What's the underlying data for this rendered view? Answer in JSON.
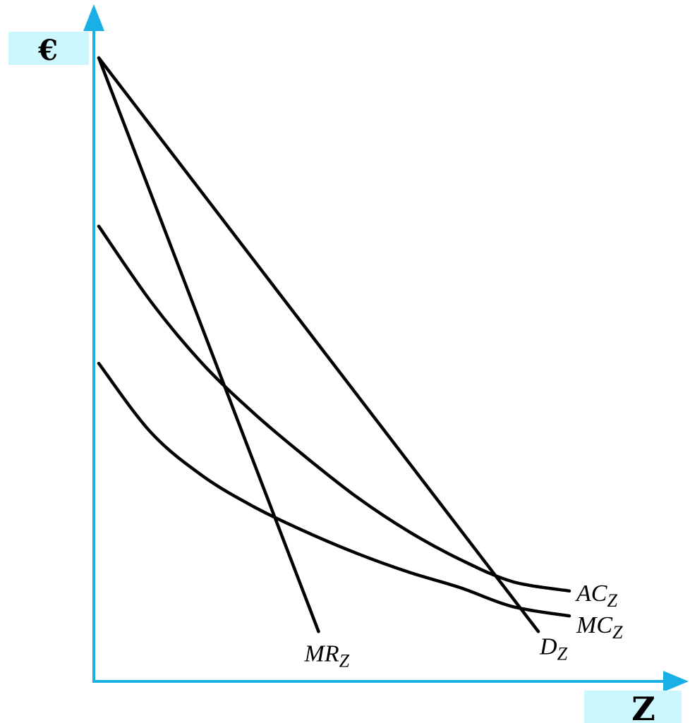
{
  "chart_data": {
    "type": "line",
    "title": "",
    "ylabel": "€",
    "xlabel": "Z",
    "grid": false,
    "legend": "none",
    "axis_color": "#1ab0e6",
    "label_box_color": "#ccf7fc",
    "curve_color": "#000000",
    "xlim": [
      0,
      10
    ],
    "ylim": [
      0,
      10
    ],
    "series": [
      {
        "name": "D",
        "subscript": "Z",
        "x": [
          0,
          8.5
        ],
        "y": [
          10,
          0.8
        ]
      },
      {
        "name": "MR",
        "subscript": "Z",
        "x": [
          0,
          4.25
        ],
        "y": [
          10,
          0.8
        ]
      },
      {
        "name": "AC",
        "subscript": "Z",
        "x": [
          0,
          1,
          2,
          3,
          4,
          5,
          6,
          7,
          8,
          9.1
        ],
        "y": [
          7.3,
          6.1,
          5.1,
          4.3,
          3.6,
          2.95,
          2.4,
          1.95,
          1.6,
          1.45
        ]
      },
      {
        "name": "MC",
        "subscript": "Z",
        "x": [
          0,
          1,
          2,
          3,
          4,
          5,
          6,
          7,
          8,
          9.1
        ],
        "y": [
          5.1,
          4.0,
          3.3,
          2.8,
          2.4,
          2.05,
          1.75,
          1.5,
          1.2,
          1.05
        ]
      }
    ]
  }
}
